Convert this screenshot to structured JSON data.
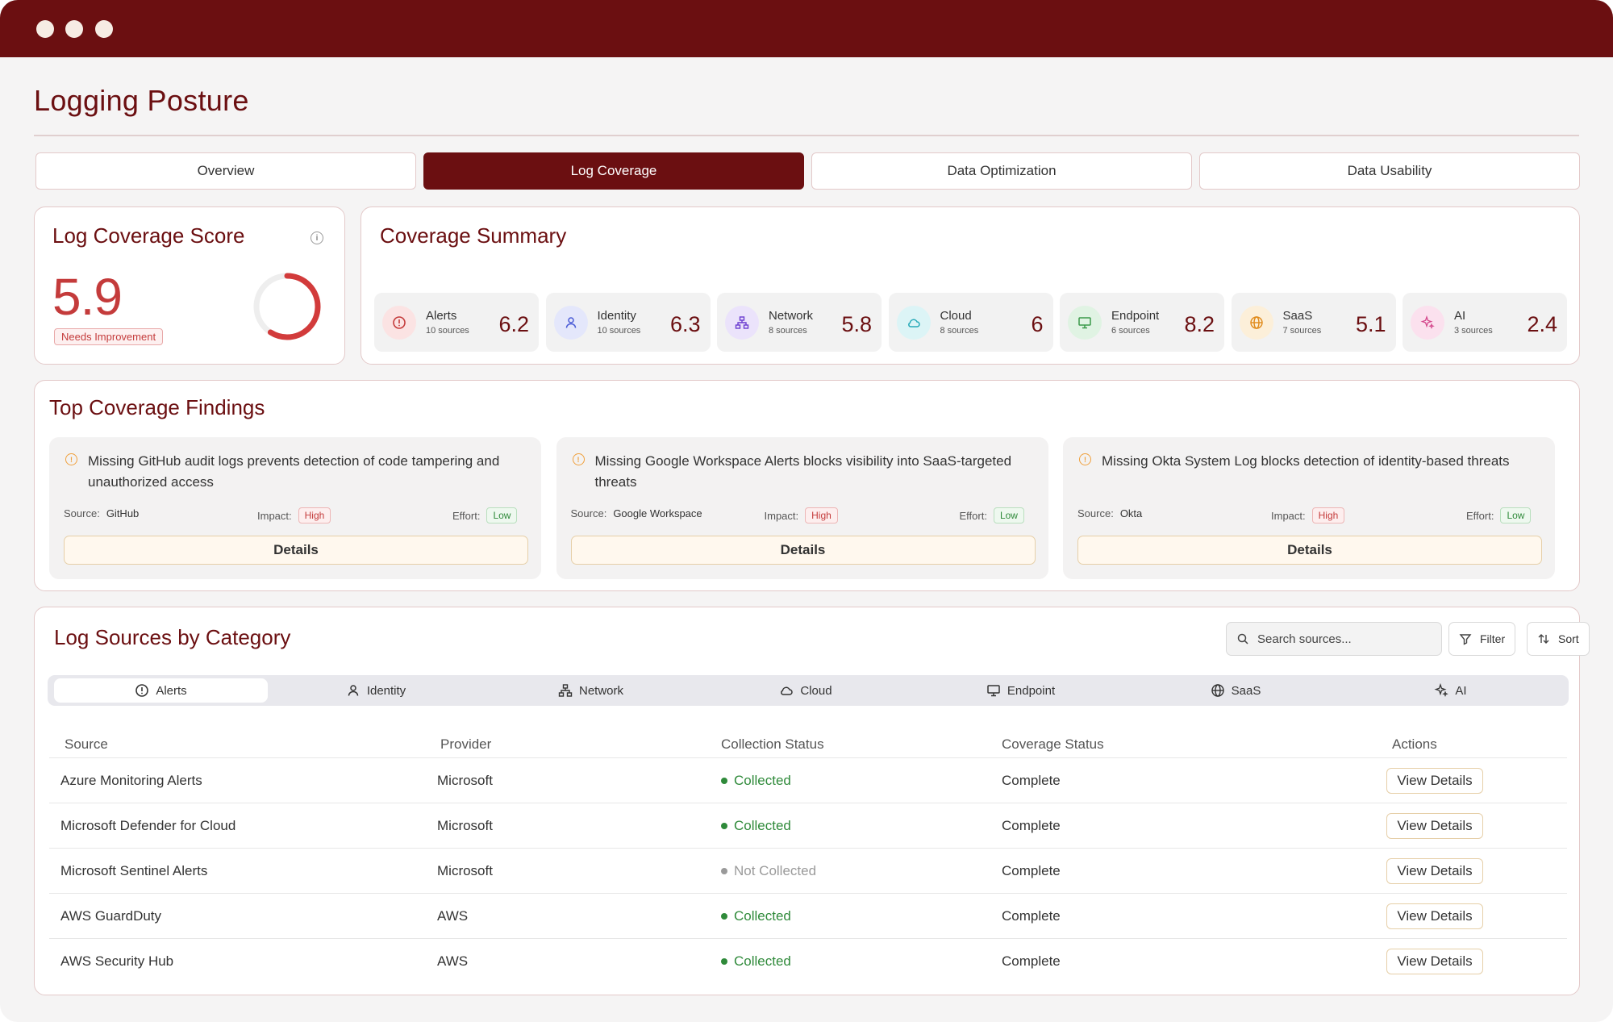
{
  "app": {
    "title": "Logging Posture"
  },
  "tabs": [
    {
      "label": "Overview",
      "active": false
    },
    {
      "label": "Log Coverage",
      "active": true
    },
    {
      "label": "Data Optimization",
      "active": false
    },
    {
      "label": "Data Usability",
      "active": false
    }
  ],
  "score": {
    "title": "Log Coverage Score",
    "value": "5.9",
    "status": "Needs Improvement",
    "gauge_fraction": 0.59
  },
  "summary": {
    "title": "Coverage Summary",
    "items": [
      {
        "name": "Alerts",
        "sources": "10 sources",
        "value": "6.2",
        "icon": "alert-circle-icon",
        "color": "#c43b3b",
        "bg": "#fbe3e3"
      },
      {
        "name": "Identity",
        "sources": "10 sources",
        "value": "6.3",
        "icon": "user-icon",
        "color": "#4a5bd6",
        "bg": "#e4e7fb"
      },
      {
        "name": "Network",
        "sources": "8 sources",
        "value": "5.8",
        "icon": "network-icon",
        "color": "#6a3bd0",
        "bg": "#ebe3fb"
      },
      {
        "name": "Cloud",
        "sources": "8 sources",
        "value": "6",
        "icon": "cloud-icon",
        "color": "#27a9b8",
        "bg": "#dcf4f6"
      },
      {
        "name": "Endpoint",
        "sources": "6 sources",
        "value": "8.2",
        "icon": "monitor-icon",
        "color": "#3a9a4a",
        "bg": "#e0f3e3"
      },
      {
        "name": "SaaS",
        "sources": "7 sources",
        "value": "5.1",
        "icon": "globe-icon",
        "color": "#e08a1a",
        "bg": "#fcefd9"
      },
      {
        "name": "AI",
        "sources": "3 sources",
        "value": "2.4",
        "icon": "sparkle-icon",
        "color": "#d4488c",
        "bg": "#fbe1ee"
      }
    ]
  },
  "findings": {
    "title": "Top Coverage Findings",
    "source_label": "Source:",
    "impact_label": "Impact:",
    "effort_label": "Effort:",
    "button_label": "Details",
    "items": [
      {
        "text": "Missing GitHub audit logs prevents detection of code tampering and unauthorized access",
        "source": "GitHub",
        "impact": "High",
        "effort": "Low"
      },
      {
        "text": "Missing Google Workspace Alerts blocks visibility into SaaS-targeted threats",
        "source": "Google Workspace",
        "impact": "High",
        "effort": "Low"
      },
      {
        "text": "Missing Okta System Log blocks detection of identity-based threats",
        "source": "Okta",
        "impact": "High",
        "effort": "Low"
      }
    ]
  },
  "sources": {
    "title": "Log Sources by Category",
    "search_placeholder": "Search sources...",
    "filter_label": "Filter",
    "sort_label": "Sort",
    "categories": [
      {
        "label": "Alerts",
        "icon": "alert-circle-icon",
        "active": true
      },
      {
        "label": "Identity",
        "icon": "user-icon",
        "active": false
      },
      {
        "label": "Network",
        "icon": "network-icon",
        "active": false
      },
      {
        "label": "Cloud",
        "icon": "cloud-icon",
        "active": false
      },
      {
        "label": "Endpoint",
        "icon": "monitor-icon",
        "active": false
      },
      {
        "label": "SaaS",
        "icon": "globe-icon",
        "active": false
      },
      {
        "label": "AI",
        "icon": "sparkle-icon",
        "active": false
      }
    ],
    "columns": [
      "Source",
      "Provider",
      "Collection Status",
      "Coverage Status",
      "Actions"
    ],
    "action_label": "View Details",
    "collected_color": "#2f8a3a",
    "not_collected_color": "#9a9a9a",
    "rows": [
      {
        "source": "Azure Monitoring Alerts",
        "provider": "Microsoft",
        "collection": "Collected",
        "collected": true,
        "coverage": "Complete"
      },
      {
        "source": "Microsoft Defender for Cloud",
        "provider": "Microsoft",
        "collection": "Collected",
        "collected": true,
        "coverage": "Complete"
      },
      {
        "source": "Microsoft Sentinel Alerts",
        "provider": "Microsoft",
        "collection": "Not Collected",
        "collected": false,
        "coverage": "Complete"
      },
      {
        "source": "AWS GuardDuty",
        "provider": "AWS",
        "collection": "Collected",
        "collected": true,
        "coverage": "Complete"
      },
      {
        "source": "AWS Security Hub",
        "provider": "AWS",
        "collection": "Collected",
        "collected": true,
        "coverage": "Complete"
      }
    ]
  }
}
